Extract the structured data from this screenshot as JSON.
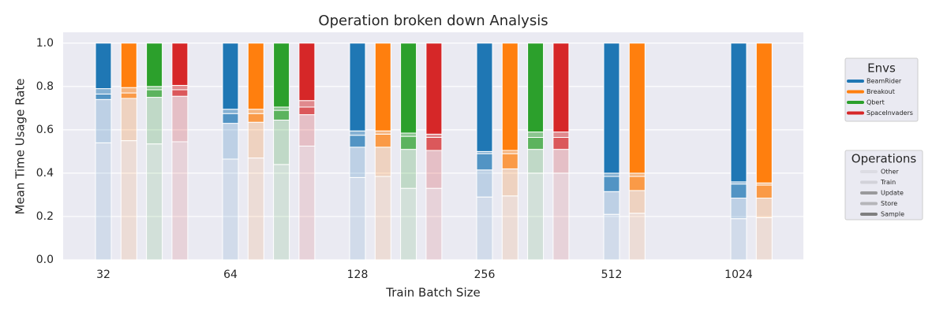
{
  "chart_data": {
    "type": "stacked-grouped-bar",
    "title": "Operation broken down Analysis",
    "xlabel": "Train Batch Size",
    "ylabel": "Mean Time Usage Rate",
    "categories": [
      "32",
      "64",
      "128",
      "256",
      "512",
      "1024"
    ],
    "ylim": [
      0,
      1.05
    ],
    "yticks": [
      {
        "value": 0,
        "label": "0.0"
      },
      0.2,
      0.4,
      0.6,
      0.8,
      {
        "value": 1,
        "label": "1.0"
      }
    ],
    "grid": true,
    "series_legend_title": "Envs",
    "operations_legend_title": "Operations",
    "operations": [
      {
        "name": "Other",
        "alpha": 0.12
      },
      {
        "name": "Train",
        "alpha": 0.22
      },
      {
        "name": "Update",
        "alpha": 0.75
      },
      {
        "name": "Store",
        "alpha": 0.5
      },
      {
        "name": "Sample",
        "alpha": 1
      }
    ],
    "series": [
      {
        "name": "BeamRider",
        "color": "#1f77b4",
        "values": [
          [
            0.54,
            0.2,
            0.025,
            0.025,
            0.21
          ],
          [
            0.465,
            0.165,
            0.045,
            0.02,
            0.305
          ],
          [
            0.38,
            0.14,
            0.055,
            0.02,
            0.405
          ],
          [
            0.29,
            0.125,
            0.075,
            0.01,
            0.5
          ],
          [
            0.21,
            0.105,
            0.07,
            0.015,
            0.6
          ],
          [
            0.19,
            0.095,
            0.065,
            0.01,
            0.64
          ]
        ]
      },
      {
        "name": "Breakout",
        "color": "#ff7f0e",
        "values": [
          [
            0.55,
            0.195,
            0.025,
            0.025,
            0.205
          ],
          [
            0.47,
            0.165,
            0.04,
            0.02,
            0.305
          ],
          [
            0.385,
            0.135,
            0.06,
            0.015,
            0.405
          ],
          [
            0.295,
            0.125,
            0.07,
            0.015,
            0.495
          ],
          [
            0.215,
            0.105,
            0.065,
            0.015,
            0.6
          ],
          [
            0.195,
            0.09,
            0.06,
            0.01,
            0.645
          ]
        ]
      },
      {
        "name": "Qbert",
        "color": "#2ca02c",
        "values": [
          [
            0.535,
            0.215,
            0.035,
            0.015,
            0.2
          ],
          [
            0.44,
            0.205,
            0.045,
            0.015,
            0.295
          ],
          [
            0.33,
            0.18,
            0.06,
            0.015,
            0.415
          ],
          [
            0.4,
            0.11,
            0.055,
            0.025,
            0.41
          ],
          null,
          null
        ]
      },
      {
        "name": "SpaceInvaders",
        "color": "#d62728",
        "values": [
          [
            0.545,
            0.21,
            0.03,
            0.02,
            0.195
          ],
          [
            0.525,
            0.145,
            0.035,
            0.03,
            0.265
          ],
          [
            0.33,
            0.175,
            0.06,
            0.015,
            0.42
          ],
          [
            0.4,
            0.11,
            0.055,
            0.025,
            0.41
          ],
          null,
          null
        ]
      }
    ]
  }
}
